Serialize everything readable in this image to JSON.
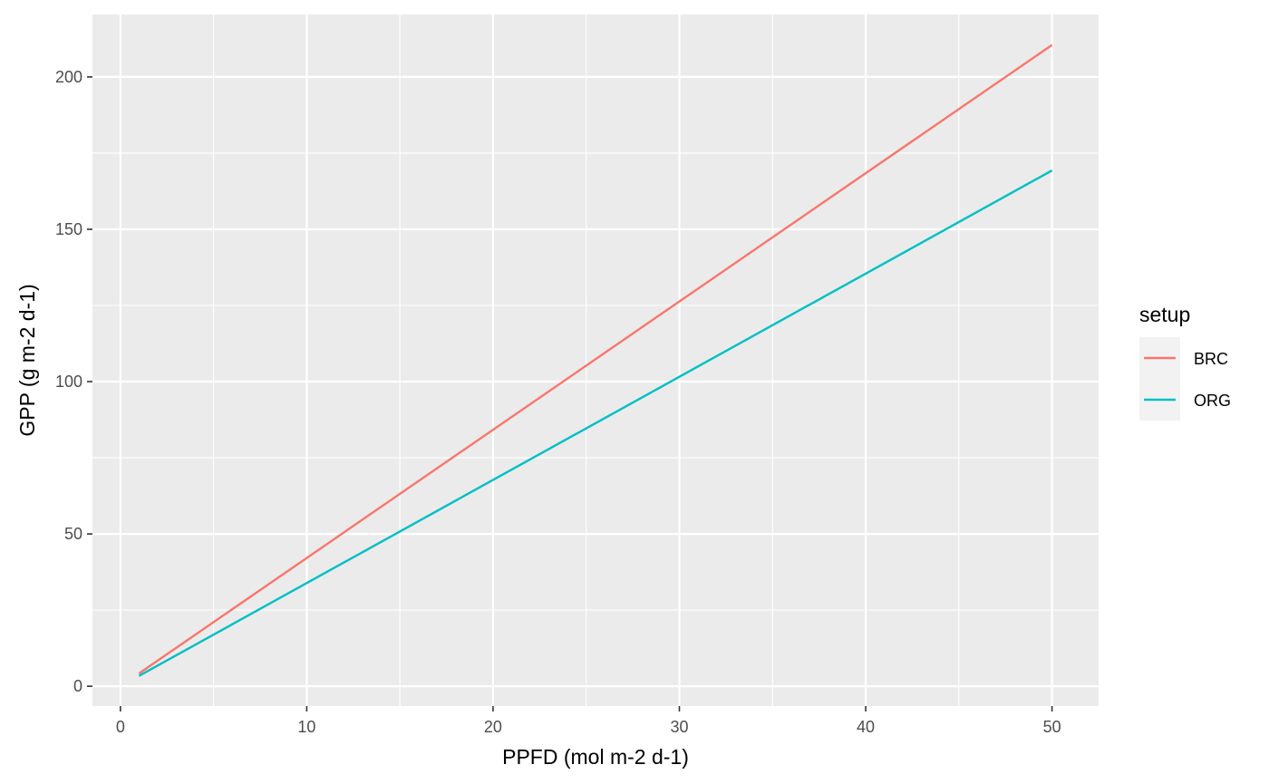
{
  "chart_data": {
    "type": "line",
    "xlabel": "PPFD (mol m-2 d-1)",
    "ylabel": "GPP (g m-2 d-1)",
    "xlim": [
      -1.5,
      52.5
    ],
    "ylim": [
      -6.5,
      220.5
    ],
    "x_ticks": [
      0,
      10,
      20,
      30,
      40,
      50
    ],
    "y_ticks": [
      0,
      50,
      100,
      150,
      200
    ],
    "grid": true,
    "legend": {
      "title": "setup",
      "placement": "right"
    },
    "series": [
      {
        "name": "BRC",
        "color": "#F8766D",
        "x": [
          1,
          50
        ],
        "y": [
          4.2,
          210.5
        ]
      },
      {
        "name": "ORG",
        "color": "#00BFC4",
        "x": [
          1,
          50
        ],
        "y": [
          3.4,
          169.3
        ]
      }
    ]
  }
}
